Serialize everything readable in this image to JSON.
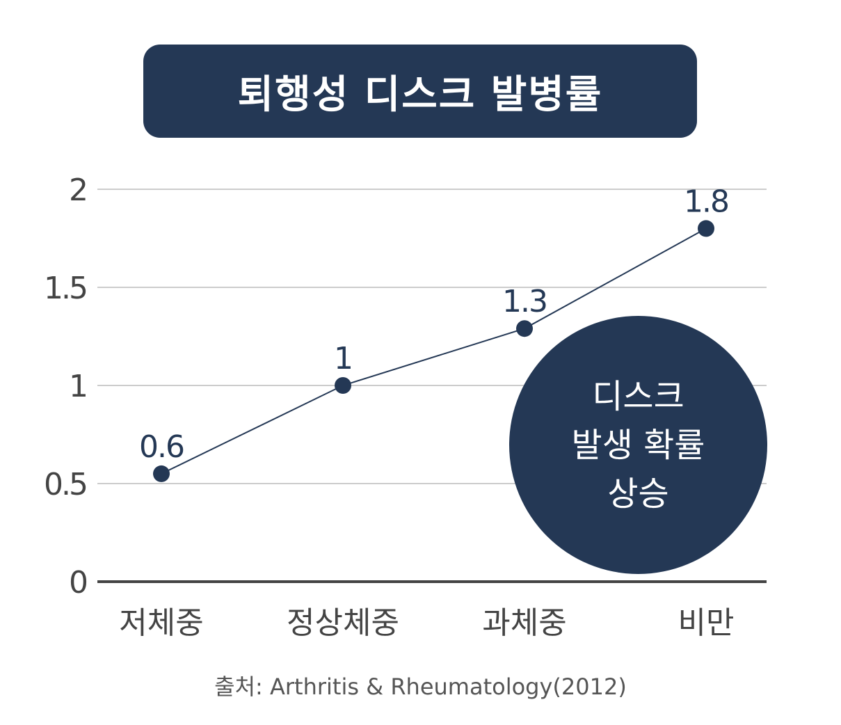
{
  "chart_data": {
    "type": "line",
    "title": "퇴행성 디스크 발병률",
    "categories": [
      "저체중",
      "정상체중",
      "과체중",
      "비만"
    ],
    "series": [
      {
        "values": [
          0.55,
          1.0,
          1.29,
          1.8
        ],
        "labels": [
          "0.6",
          "1",
          "1.3",
          "1.8"
        ]
      }
    ],
    "y_ticks": [
      "0",
      "0.5",
      "1",
      "1.5",
      "2"
    ],
    "ylim": [
      0,
      2
    ],
    "grid": true,
    "colors": {
      "line": "#243855",
      "point": "#243855",
      "grid": "#bbbbbb",
      "axis": "#444444"
    }
  },
  "callout": {
    "lines": [
      "디스크",
      "발생 확률",
      "상승"
    ]
  },
  "source": "출처: Arthritis & Rheumatology(2012)"
}
